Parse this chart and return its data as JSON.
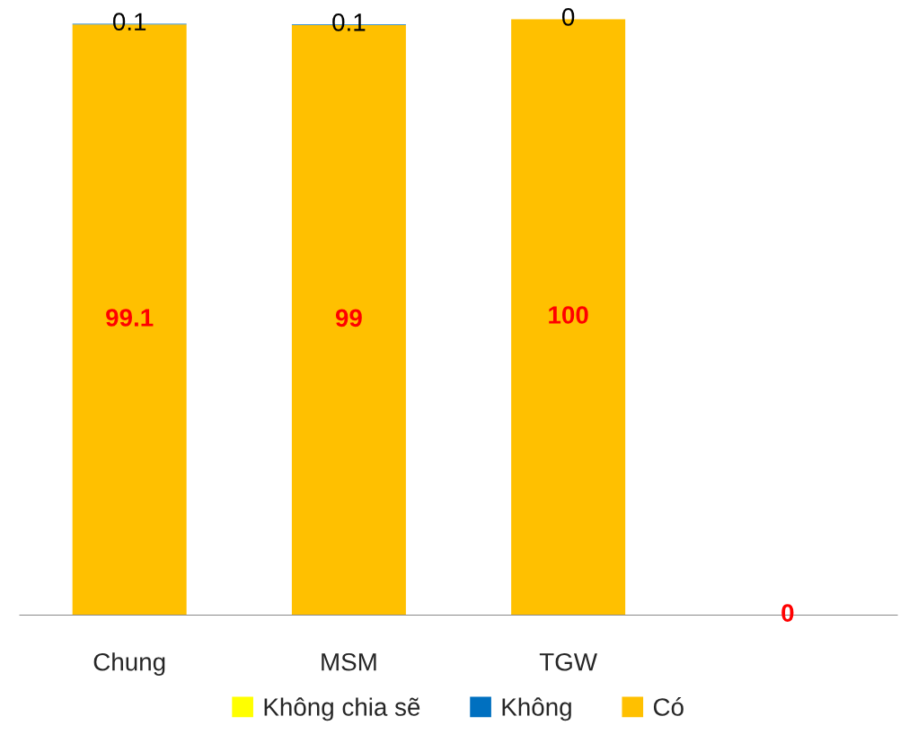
{
  "chart_data": {
    "type": "bar",
    "stacked": true,
    "legend": "bottom",
    "categories": [
      "Chung",
      "MSM",
      "TGW",
      null
    ],
    "series": [
      {
        "name": "Có",
        "color": "#ffc000",
        "values": [
          99.1,
          99,
          100,
          0
        ],
        "value_labels": [
          "99.1",
          "99",
          "100",
          "0"
        ]
      },
      {
        "name": "Không",
        "color": "#0070c0",
        "values": [
          0.1,
          0.1,
          0,
          null
        ],
        "value_labels": [
          "0.1",
          "0.1",
          "0",
          null
        ]
      },
      {
        "name": "Không chia sẽ",
        "color": "#ffff00",
        "values": [
          null,
          null,
          null,
          null
        ]
      }
    ]
  }
}
